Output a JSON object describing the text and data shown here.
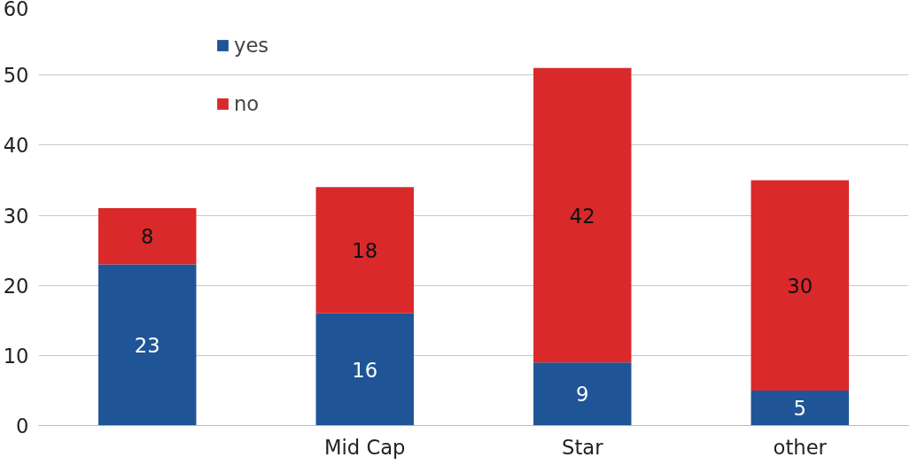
{
  "chart_data": {
    "type": "bar",
    "stacked": true,
    "categories": [
      null,
      "Mid Cap",
      "Star",
      "other"
    ],
    "series": [
      {
        "name": "yes",
        "color": "#1f5597",
        "values": [
          23,
          16,
          9,
          5
        ]
      },
      {
        "name": "no",
        "color": "#d9292b",
        "values": [
          8,
          18,
          42,
          30
        ]
      }
    ],
    "ylim": [
      0,
      60
    ],
    "yticks": [
      0,
      10,
      20,
      30,
      40,
      50,
      60
    ],
    "grid": "y",
    "legend": "top left",
    "data_labels": true
  }
}
